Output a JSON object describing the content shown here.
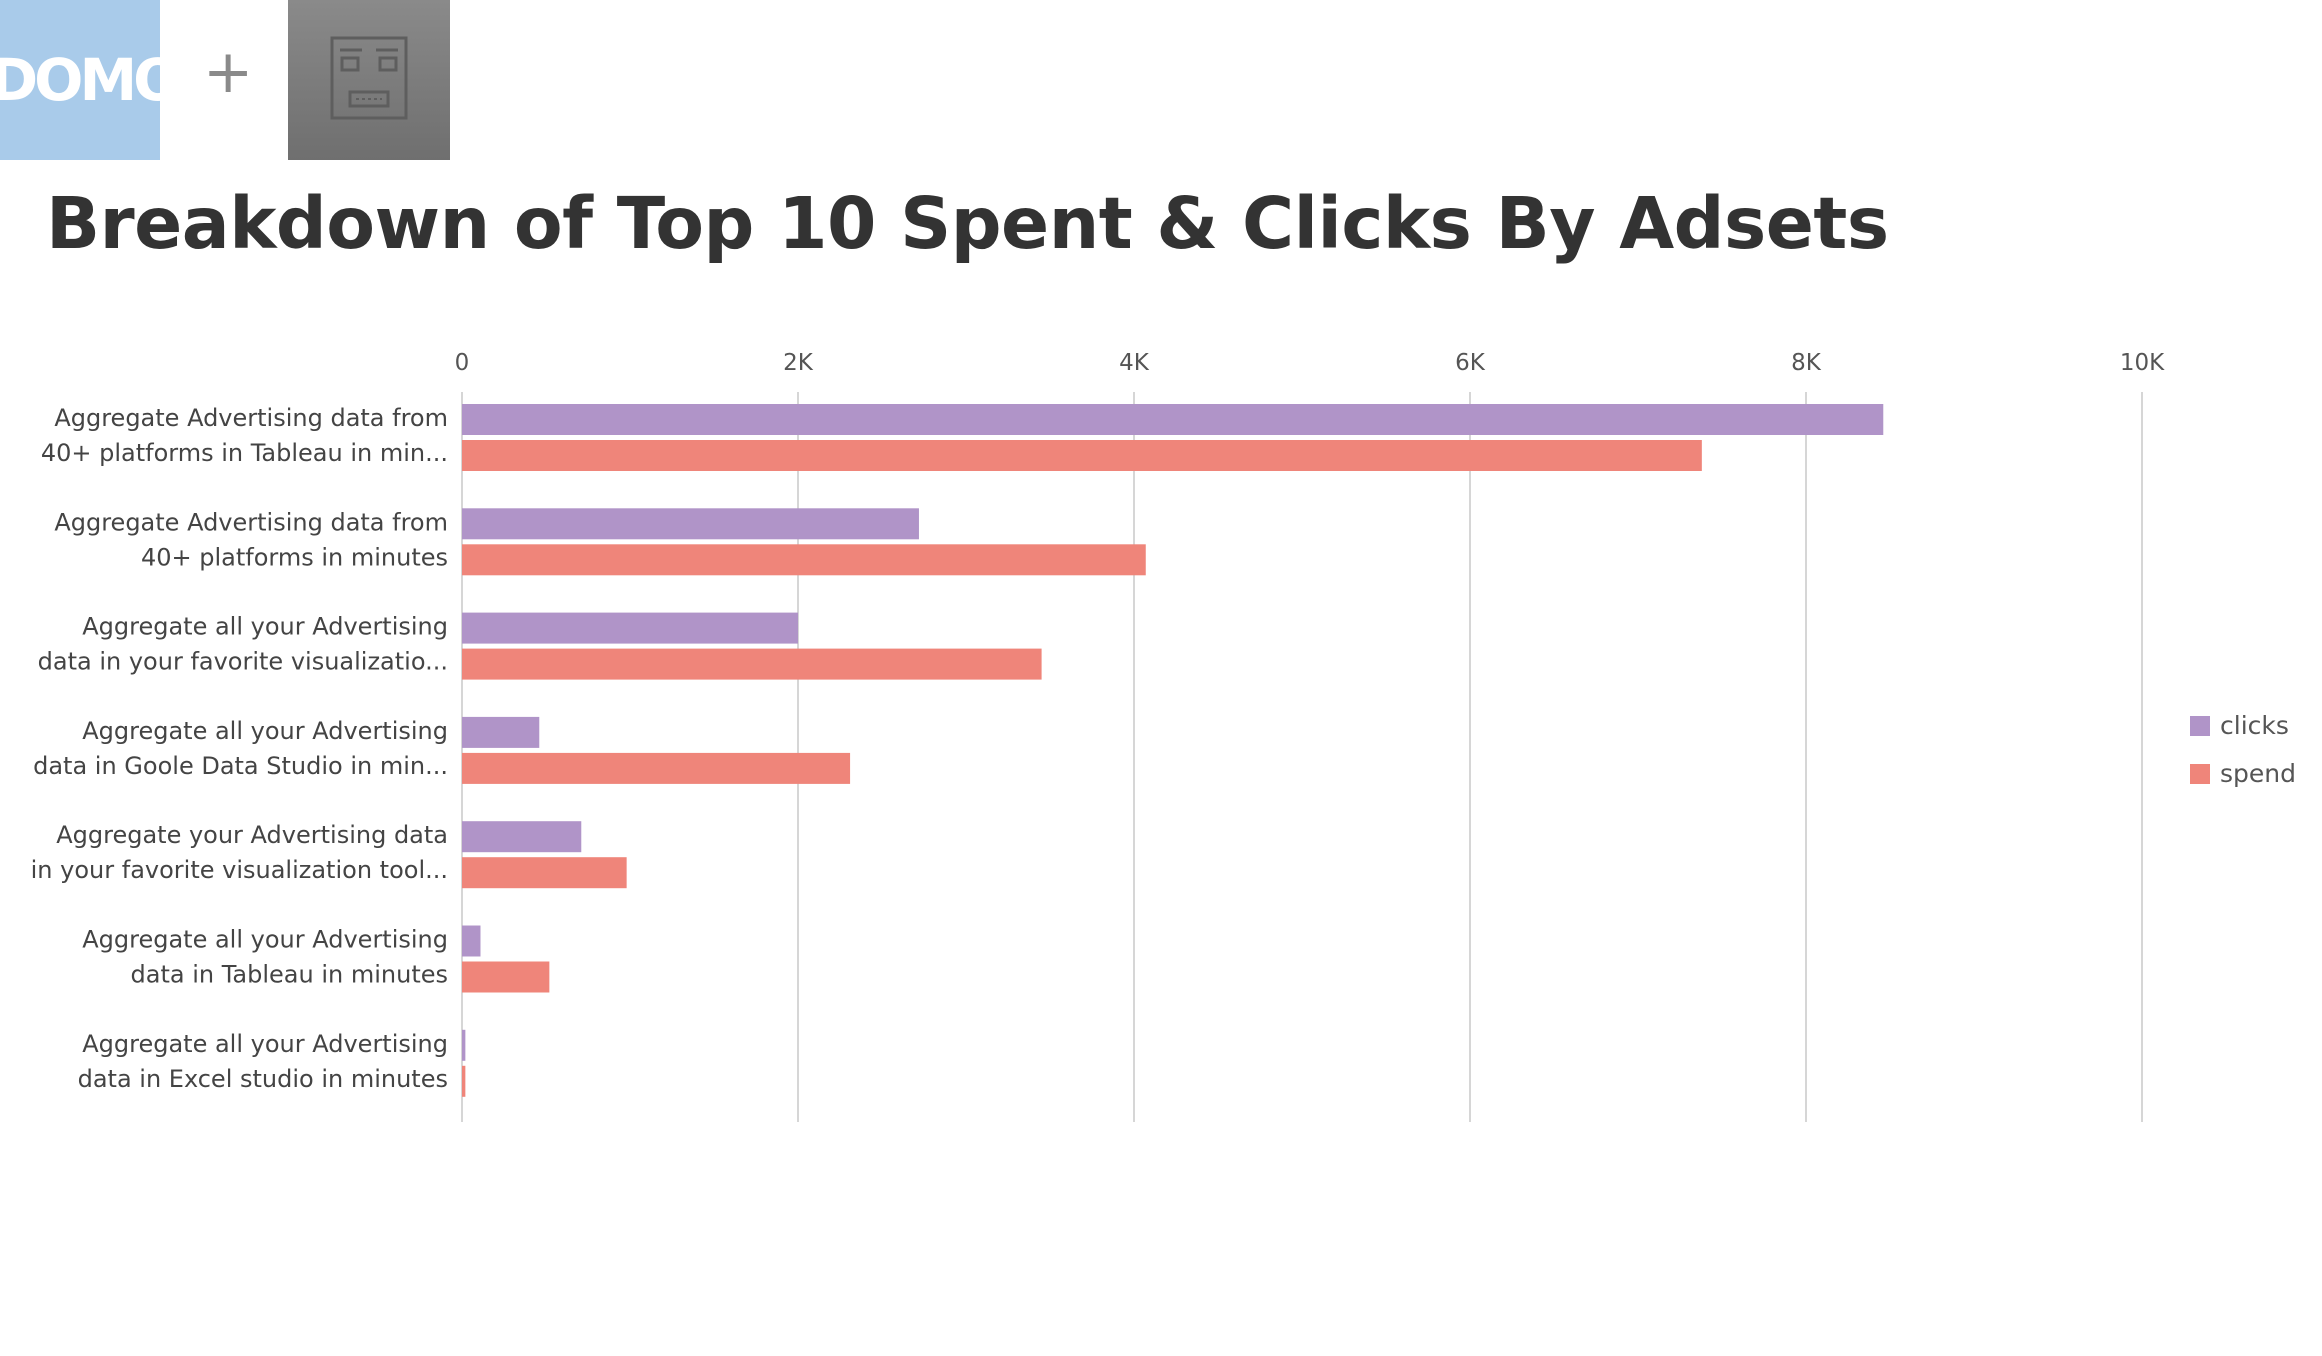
{
  "header": {
    "domo_logo_text": "DOMO",
    "plus_sign": "+",
    "partner_logo_icon": "robot-face-icon"
  },
  "chart_data": {
    "type": "bar",
    "orientation": "horizontal",
    "title": "Breakdown of Top 10 Spent & Clicks By Adsets",
    "xlabel": "",
    "ylabel": "",
    "xlim": [
      0,
      10000
    ],
    "x_ticks": [
      0,
      2000,
      4000,
      6000,
      8000,
      10000
    ],
    "x_tick_labels": [
      "0",
      "2K",
      "4K",
      "6K",
      "8K",
      "10K"
    ],
    "grid": true,
    "axis_position": "top",
    "legend_position": "right",
    "categories": [
      [
        "Aggregate Advertising data from",
        "40+ platforms in Tableau in min..."
      ],
      [
        "Aggregate Advertising data from",
        "40+ platforms in minutes"
      ],
      [
        "Aggregate all your Advertising",
        "data in your favorite visualizatio..."
      ],
      [
        "Aggregate all your Advertising",
        "data in Goole Data Studio in min..."
      ],
      [
        "Aggregate your Advertising data",
        "in your favorite visualization tool..."
      ],
      [
        "Aggregate all your Advertising",
        "data in Tableau in minutes"
      ],
      [
        "Aggregate all your Advertising",
        "data in Excel studio in minutes"
      ]
    ],
    "series": [
      {
        "name": "clicks",
        "color": "#b094c8",
        "values": [
          8460,
          2720,
          2000,
          460,
          710,
          110,
          20
        ]
      },
      {
        "name": "spend",
        "color": "#ef857a",
        "values": [
          7380,
          4070,
          3450,
          2310,
          980,
          520,
          20
        ]
      }
    ]
  }
}
